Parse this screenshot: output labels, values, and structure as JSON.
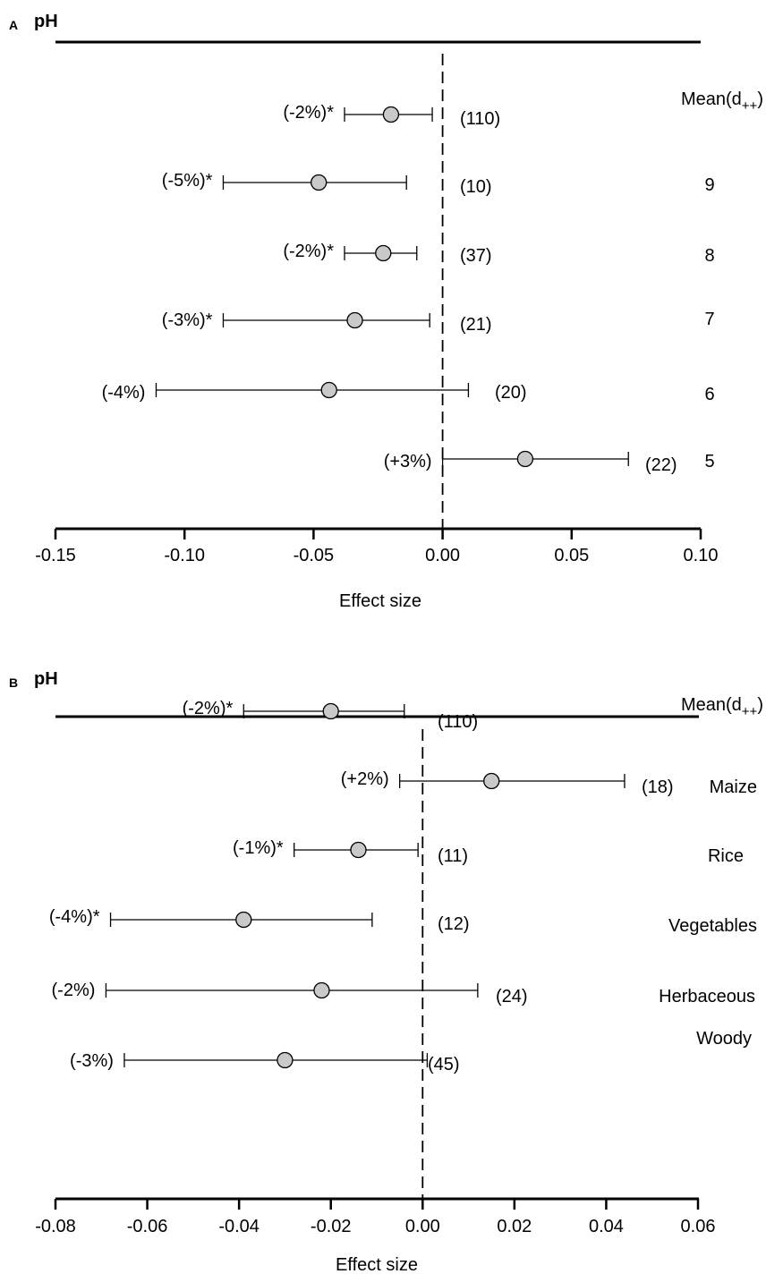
{
  "chart_data": [
    {
      "type": "forest",
      "panel_letter": "A",
      "title": "pH",
      "xlabel": "Effect size",
      "xlim": [
        -0.15,
        0.1
      ],
      "xticks": [
        "-0.15",
        "-0.10",
        "-0.05",
        "0.00",
        "0.05",
        "0.10"
      ],
      "reference_line": 0,
      "rows": [
        {
          "label": "Mean(d++)",
          "label_main": "Mean(d",
          "label_sub": "++",
          "label_close": ")",
          "mean": -0.02,
          "ci": [
            -0.038,
            -0.004
          ],
          "n": "(110)",
          "pct": "(-2%)*"
        },
        {
          "label": "9",
          "mean": -0.048,
          "ci": [
            -0.085,
            -0.014
          ],
          "n": "(10)",
          "pct": "(-5%)*"
        },
        {
          "label": "8",
          "mean": -0.023,
          "ci": [
            -0.038,
            -0.01
          ],
          "n": "(37)",
          "pct": "(-2%)*"
        },
        {
          "label": "7",
          "mean": -0.034,
          "ci": [
            -0.085,
            -0.005
          ],
          "n": "(21)",
          "pct": "(-3%)*"
        },
        {
          "label": "6",
          "mean": -0.044,
          "ci": [
            -0.111,
            0.01
          ],
          "n": "(20)",
          "pct": "(-4%)"
        },
        {
          "label": "5",
          "mean": 0.032,
          "ci": [
            0.0,
            0.072
          ],
          "n": "(22)",
          "pct": "(+3%)"
        }
      ]
    },
    {
      "type": "forest",
      "panel_letter": "B",
      "title": "pH",
      "xlabel": "Effect size",
      "xlim": [
        -0.08,
        0.06
      ],
      "xticks": [
        "-0.08",
        "-0.06",
        "-0.04",
        "-0.02",
        "0.00",
        "0.02",
        "0.04",
        "0.06"
      ],
      "reference_line": 0,
      "rows": [
        {
          "label": "Mean(d++)",
          "label_main": "Mean(d",
          "label_sub": "++",
          "label_close": ")",
          "mean": -0.02,
          "ci": [
            -0.039,
            -0.004
          ],
          "n": "(110)",
          "pct": "(-2%)*"
        },
        {
          "label": "Maize",
          "mean": 0.015,
          "ci": [
            -0.005,
            0.044
          ],
          "n": "(18)",
          "pct": "(+2%)"
        },
        {
          "label": "Rice",
          "mean": -0.014,
          "ci": [
            -0.028,
            -0.001
          ],
          "n": "(11)",
          "pct": "(-1%)*"
        },
        {
          "label": "Vegetables",
          "mean": -0.039,
          "ci": [
            -0.068,
            -0.011
          ],
          "n": "(12)",
          "pct": "(-4%)*"
        },
        {
          "label": "Herbaceous",
          "mean": -0.022,
          "ci": [
            -0.069,
            0.012
          ],
          "n": "(24)",
          "pct": "(-2%)"
        },
        {
          "label": "Woody",
          "mean": -0.03,
          "ci": [
            -0.065,
            0.001
          ],
          "n": "(45)",
          "pct": "(-3%)"
        }
      ]
    }
  ]
}
